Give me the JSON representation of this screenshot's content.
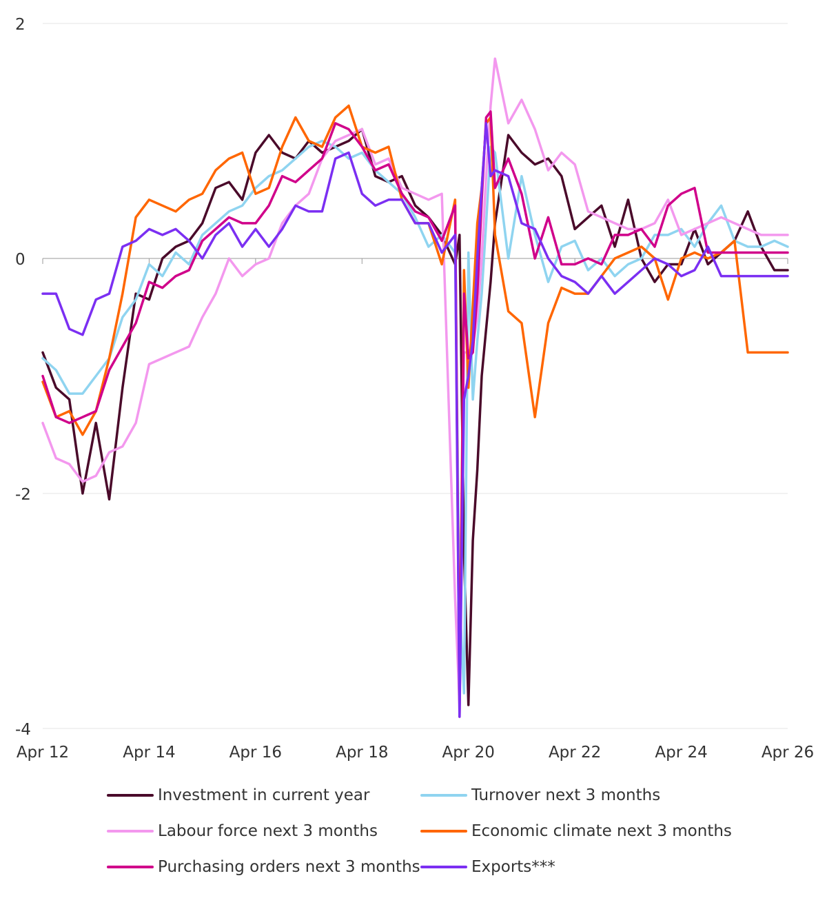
{
  "chart_data": {
    "type": "line",
    "title": "",
    "xlabel": "",
    "ylabel": "",
    "ylim": [
      -4,
      2
    ],
    "yticks": [
      2,
      0,
      -2,
      -4
    ],
    "ytick_labels": [
      "2",
      "0",
      "-2",
      "-4"
    ],
    "xlim": [
      2012.25,
      2026.25
    ],
    "xticks": [
      2012.25,
      2014.25,
      2016.25,
      2018.25,
      2020.25,
      2022.25,
      2024.25,
      2026.25
    ],
    "xtick_labels": [
      "Apr 12",
      "Apr 14",
      "Apr 16",
      "Apr 18",
      "Apr 20",
      "Apr 22",
      "Apr 24",
      "Apr 26"
    ],
    "grid": "horizontal",
    "legend_position": "bottom",
    "x": [
      2012.25,
      2012.5,
      2012.75,
      2013,
      2013.25,
      2013.5,
      2013.75,
      2014,
      2014.25,
      2014.5,
      2014.75,
      2015,
      2015.25,
      2015.5,
      2015.75,
      2016,
      2016.25,
      2016.5,
      2016.75,
      2017,
      2017.25,
      2017.5,
      2017.75,
      2018,
      2018.25,
      2018.5,
      2018.75,
      2019,
      2019.25,
      2019.5,
      2019.75,
      2020,
      2020.083,
      2020.167,
      2020.25,
      2020.333,
      2020.417,
      2020.5,
      2020.583,
      2020.667,
      2020.75,
      2021,
      2021.25,
      2021.5,
      2021.75,
      2022,
      2022.25,
      2022.5,
      2022.75,
      2023,
      2023.25,
      2023.5,
      2023.75,
      2024,
      2024.25,
      2024.5,
      2024.75,
      2025,
      2025.25,
      2025.5,
      2025.75,
      2026,
      2026.25
    ],
    "series": [
      {
        "name": "Investment in current year",
        "color": "#4a0a2a",
        "values": [
          -0.8,
          -1.1,
          -1.2,
          -2.0,
          -1.4,
          -2.05,
          -1.1,
          -0.3,
          -0.35,
          0.0,
          0.1,
          0.15,
          0.3,
          0.6,
          0.65,
          0.5,
          0.9,
          1.05,
          0.9,
          0.85,
          1.0,
          0.9,
          0.95,
          1.0,
          1.1,
          0.7,
          0.65,
          0.7,
          0.45,
          0.35,
          0.2,
          -0.05,
          0.2,
          -2.5,
          -3.8,
          -2.4,
          -1.8,
          -1.0,
          -0.6,
          -0.2,
          0.3,
          1.05,
          0.9,
          0.8,
          0.85,
          0.7,
          0.25,
          0.35,
          0.45,
          0.1,
          0.5,
          0.0,
          -0.2,
          -0.05,
          -0.05,
          0.25,
          -0.05,
          0.05,
          0.15,
          0.4,
          0.1,
          -0.1,
          -0.1
        ]
      },
      {
        "name": "Turnover next 3 months",
        "color": "#8fd4f0",
        "values": [
          -0.85,
          -0.95,
          -1.15,
          -1.15,
          -1.0,
          -0.85,
          -0.5,
          -0.35,
          -0.05,
          -0.15,
          0.05,
          -0.05,
          0.2,
          0.3,
          0.4,
          0.45,
          0.6,
          0.7,
          0.75,
          0.85,
          0.95,
          1.0,
          0.95,
          0.85,
          0.9,
          0.75,
          0.65,
          0.55,
          0.35,
          0.1,
          0.2,
          0.05,
          -2.9,
          -3.7,
          0.05,
          -1.2,
          -0.7,
          -0.3,
          0.3,
          0.95,
          0.9,
          0.0,
          0.7,
          0.2,
          -0.2,
          0.1,
          0.15,
          -0.1,
          0.0,
          -0.15,
          -0.05,
          0.0,
          0.2,
          0.2,
          0.25,
          0.1,
          0.3,
          0.45,
          0.15,
          0.1,
          0.1,
          0.15,
          0.1
        ]
      },
      {
        "name": "Labour force next 3 months",
        "color": "#f398ee",
        "values": [
          -1.4,
          -1.7,
          -1.75,
          -1.9,
          -1.85,
          -1.65,
          -1.6,
          -1.4,
          -0.9,
          -0.85,
          -0.8,
          -0.75,
          -0.5,
          -0.3,
          0.0,
          -0.15,
          -0.05,
          0.0,
          0.3,
          0.45,
          0.55,
          0.85,
          1.0,
          1.05,
          1.1,
          0.8,
          0.85,
          0.6,
          0.55,
          0.5,
          0.55,
          -2.9,
          -3.8,
          -0.8,
          -0.8,
          -0.75,
          -0.5,
          0.0,
          0.7,
          1.3,
          1.7,
          1.15,
          1.35,
          1.1,
          0.75,
          0.9,
          0.8,
          0.4,
          0.35,
          0.3,
          0.25,
          0.25,
          0.3,
          0.5,
          0.2,
          0.25,
          0.3,
          0.35,
          0.3,
          0.25,
          0.2,
          0.2,
          0.2
        ]
      },
      {
        "name": "Economic climate next 3 months",
        "color": "#ff6600",
        "values": [
          -1.05,
          -1.35,
          -1.3,
          -1.5,
          -1.3,
          -0.85,
          -0.3,
          0.35,
          0.5,
          0.45,
          0.4,
          0.5,
          0.55,
          0.75,
          0.85,
          0.9,
          0.55,
          0.6,
          0.95,
          1.2,
          1.0,
          0.95,
          1.2,
          1.3,
          0.95,
          0.9,
          0.95,
          0.5,
          0.3,
          0.3,
          -0.05,
          0.5,
          -3.8,
          -0.1,
          -1.1,
          -0.4,
          0.3,
          0.6,
          1.15,
          1.2,
          0.2,
          -0.45,
          -0.55,
          -1.35,
          -0.55,
          -0.25,
          -0.3,
          -0.3,
          -0.15,
          0.0,
          0.05,
          0.1,
          0.0,
          -0.35,
          0.0,
          0.05,
          0.0,
          0.05,
          0.15,
          -0.8,
          -0.8,
          -0.8,
          -0.8
        ]
      },
      {
        "name": "Purchasing orders next 3 months",
        "color": "#d0008a",
        "values": [
          -1.0,
          -1.35,
          -1.4,
          -1.35,
          -1.3,
          -0.95,
          -0.75,
          -0.55,
          -0.2,
          -0.25,
          -0.15,
          -0.1,
          0.15,
          0.25,
          0.35,
          0.3,
          0.3,
          0.45,
          0.7,
          0.65,
          0.75,
          0.85,
          1.15,
          1.1,
          0.95,
          0.75,
          0.8,
          0.55,
          0.4,
          0.35,
          0.15,
          0.45,
          -3.9,
          -0.3,
          -0.85,
          -0.8,
          -0.3,
          0.5,
          1.2,
          1.25,
          0.6,
          0.85,
          0.55,
          0.0,
          0.35,
          -0.05,
          -0.05,
          0.0,
          -0.05,
          0.2,
          0.2,
          0.25,
          0.1,
          0.45,
          0.55,
          0.6,
          0.05,
          0.05,
          0.05,
          0.05,
          0.05,
          0.05,
          0.05
        ]
      },
      {
        "name": "Exports***",
        "color": "#7b2ff2",
        "values": [
          -0.3,
          -0.3,
          -0.6,
          -0.65,
          -0.35,
          -0.3,
          0.1,
          0.15,
          0.25,
          0.2,
          0.25,
          0.15,
          0.0,
          0.2,
          0.3,
          0.1,
          0.25,
          0.1,
          0.25,
          0.45,
          0.4,
          0.4,
          0.85,
          0.9,
          0.55,
          0.45,
          0.5,
          0.5,
          0.3,
          0.3,
          0.05,
          0.2,
          -3.9,
          -1.2,
          -1.0,
          -0.7,
          0.0,
          0.6,
          1.15,
          0.7,
          0.75,
          0.7,
          0.3,
          0.25,
          0.0,
          -0.15,
          -0.2,
          -0.3,
          -0.15,
          -0.3,
          -0.2,
          -0.1,
          0.0,
          -0.05,
          -0.15,
          -0.1,
          0.1,
          -0.15,
          -0.15,
          -0.15,
          -0.15,
          -0.15,
          -0.15
        ]
      }
    ]
  }
}
